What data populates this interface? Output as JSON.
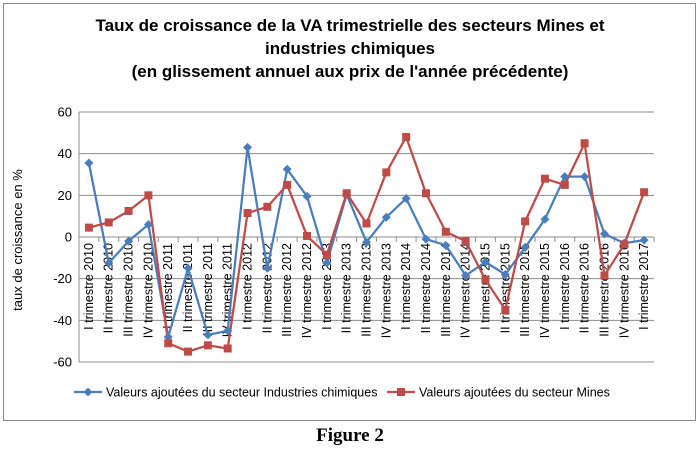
{
  "chart_data": {
    "type": "line",
    "title_lines": [
      "Taux de croissance de la VA trimestrielle des secteurs Mines et",
      "industries chimiques",
      "(en glissement annuel aux prix de l'année précédente)"
    ],
    "ylabel": "taux de croissance en %",
    "xlabel": "",
    "ylim": [
      -60,
      60
    ],
    "yticks": [
      -60,
      -40,
      -20,
      0,
      20,
      40,
      60
    ],
    "grid": "horizontal",
    "legend_position": "bottom",
    "categories": [
      "I trimestre 2010",
      "II trimestre 2010",
      "III trimestre 2010",
      "IV trimestre 2010",
      "I trimestre 2011",
      "II trimestre 2011",
      "III trimestre 2011",
      "IV trimestre 2011",
      "I trimestre 2012",
      "II trimestre 2012",
      "III trimestre 2012",
      "IV trimestre 2012",
      "I trimestre 2013",
      "II trimestre 2013",
      "III trimestre 2013",
      "IV trimestre 2013",
      "I trimestre 2014",
      "II trimestre 2014",
      "III trimestre 2014",
      "IV trimestre 2014",
      "I trimestre 2015",
      "II trimestre 2015",
      "III trimestre 2015",
      "IV trimestre 2015",
      "I trimestre 2016",
      "II trimestre 2016",
      "III trimestre 2016",
      "IV trimestre 2016",
      "I trimestre 2017"
    ],
    "series": [
      {
        "name": "Valeurs ajoutées du secteur Industries chimiques",
        "color": "#4a7ebb",
        "marker": "diamond",
        "values": [
          35.5,
          -12.5,
          -2,
          6,
          -48,
          -15,
          -47,
          -45,
          43,
          -15,
          32.5,
          19.5,
          -12.5,
          20.5,
          -2.5,
          9.5,
          18.5,
          -1,
          -4,
          -18.5,
          -12,
          -18,
          -5,
          8.5,
          29,
          29,
          1.5,
          -3,
          -1.5
        ]
      },
      {
        "name": "Valeurs ajoutées du secteur Mines",
        "color": "#be4b48",
        "marker": "square",
        "values": [
          4.5,
          7,
          12.5,
          20,
          -51,
          -55,
          -52,
          -53.5,
          11.5,
          14.5,
          25,
          0.5,
          -8.5,
          21,
          6.5,
          31,
          48,
          21,
          2.5,
          -2,
          -20.5,
          -35,
          7.5,
          28,
          25,
          45,
          -18.5,
          -3.5,
          21.5
        ]
      }
    ]
  },
  "caption": "Figure 2",
  "icons": {
    "series_1_marker": "diamond-marker-icon",
    "series_2_marker": "square-marker-icon"
  }
}
